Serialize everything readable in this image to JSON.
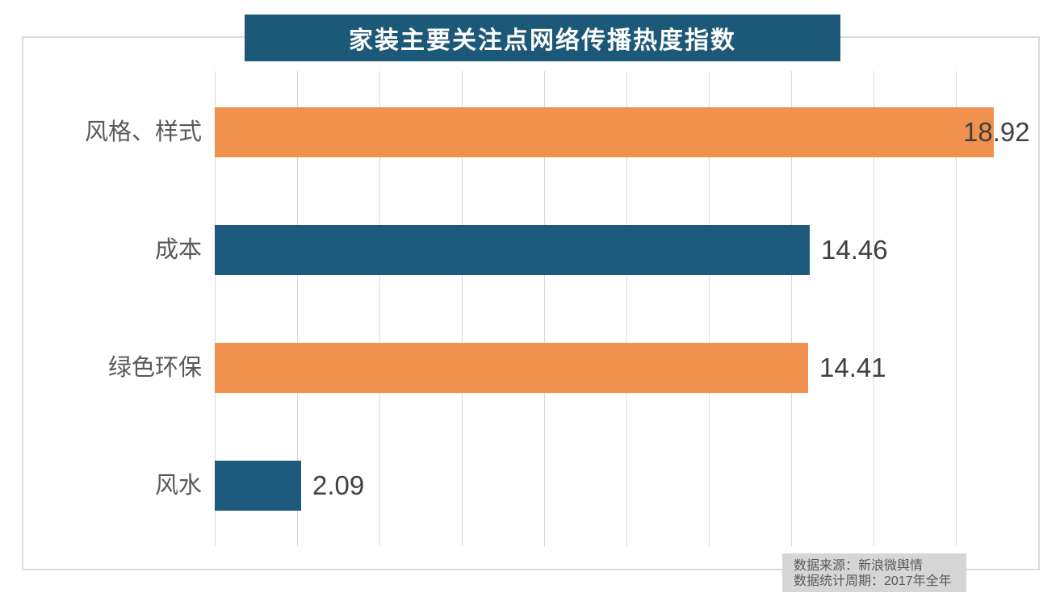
{
  "title": "家装主要关注点网络传播热度指数",
  "chart_data": {
    "type": "bar",
    "orientation": "horizontal",
    "title": "家装主要关注点网络传播热度指数",
    "categories": [
      "风格、样式",
      "成本",
      "绿色环保",
      "风水"
    ],
    "values": [
      18.92,
      14.46,
      14.41,
      2.09
    ],
    "data_labels": [
      "18.92",
      "14.46",
      "14.41",
      "2.09"
    ],
    "bar_colors": [
      "#F0924D",
      "#1E5A7D",
      "#F0924D",
      "#1E5A7D"
    ],
    "xlim": [
      0,
      20
    ],
    "gridline_step": 2,
    "grid": true,
    "legend_position": "none",
    "xlabel": "",
    "ylabel": ""
  },
  "colors": {
    "title_bg": "#1C5878",
    "orange": "#F0924D",
    "teal": "#1E5A7D",
    "gridline": "#DADADA",
    "border": "#DCDCDC",
    "category_text": "#595959",
    "value_text": "#404040",
    "source_bg": "#D6D6D6",
    "source_text": "#595959"
  },
  "source": {
    "line1": "数据来源：新浪微舆情",
    "line2": "数据统计周期：2017年全年"
  }
}
